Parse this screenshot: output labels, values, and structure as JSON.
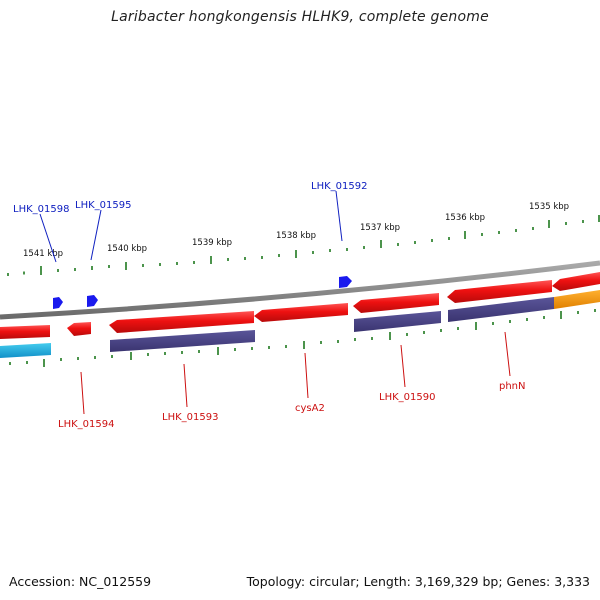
{
  "title": "Laribacter hongkongensis HLHK9, complete genome",
  "footer": {
    "accession": "Accession: NC_012559",
    "summary": "Topology: circular; Length: 3,169,329 bp; Genes: 3,333"
  },
  "scale_labels": [
    "1541 kbp",
    "1540 kbp",
    "1539 kbp",
    "1538 kbp",
    "1537 kbp",
    "1536 kbp",
    "1535 kbp"
  ],
  "upper_gene_labels": [
    "LHK_01598",
    "LHK_01595",
    "LHK_01592"
  ],
  "lower_gene_labels": [
    "LHK_01594",
    "LHK_01593",
    "cysA2",
    "LHK_01590",
    "phnN"
  ],
  "colors": {
    "backbone": "#888888",
    "gene_red": "#ee1111",
    "gene_blue_small": "#1a1aee",
    "cds_purple": "#4a4488",
    "cds_cyan": "#22aadd",
    "cds_orange": "#ff9900",
    "tick_green": "#1f7a1f",
    "label_blue": "#1020c0",
    "label_red": "#cc1010"
  }
}
